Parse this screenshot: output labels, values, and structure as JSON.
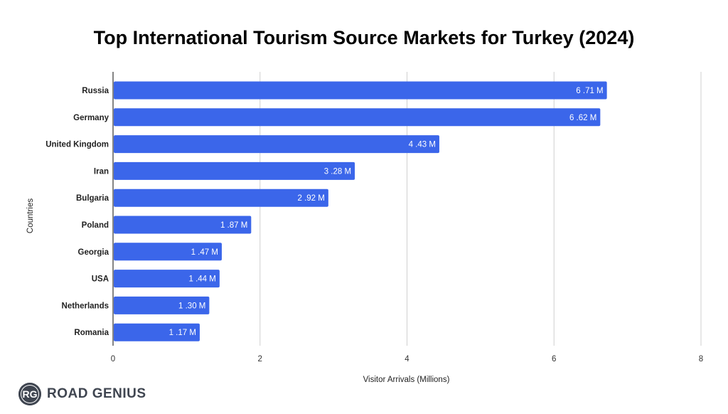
{
  "chart_data": {
    "type": "bar",
    "orientation": "horizontal",
    "title": "Top International Tourism Source Markets for Turkey (2024)",
    "xlabel": "Visitor Arrivals (Millions)",
    "ylabel": "Countries",
    "xlim": [
      0,
      8
    ],
    "xticks": [
      "0",
      "2",
      "4",
      "6",
      "8"
    ],
    "grid": true,
    "bar_color": "#3b66ea",
    "categories": [
      "Russia",
      "Germany",
      "United Kingdom",
      "Iran",
      "Bulgaria",
      "Poland",
      "Georgia",
      "USA",
      "Netherlands",
      "Romania"
    ],
    "values": [
      6.71,
      6.62,
      4.43,
      3.28,
      2.92,
      1.87,
      1.47,
      1.44,
      1.3,
      1.17
    ],
    "data_labels": [
      "6 .71 M",
      "6 .62 M",
      "4 .43 M",
      "3 .28 M",
      "2 .92 M",
      "1 .87 M",
      "1 .47 M",
      "1 .44 M",
      "1 .30 M",
      "1 .17 M"
    ]
  },
  "logo": {
    "badge": "RG",
    "text": "ROAD GENIUS"
  }
}
